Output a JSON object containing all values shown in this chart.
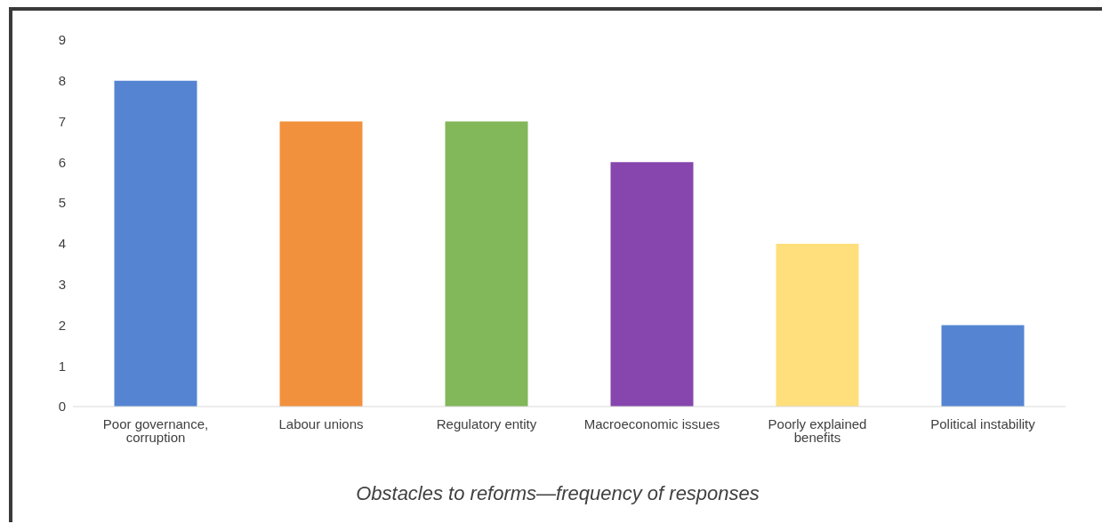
{
  "chart_data": {
    "type": "bar",
    "title": "Obstacles to reforms—frequency of responses",
    "categories": [
      "Poor governance, corruption",
      "Labour unions",
      "Regulatory entity",
      "Macroeconomic issues",
      "Poorly explained benefits",
      "Political instability"
    ],
    "values": [
      8,
      7,
      7,
      6,
      4,
      2
    ],
    "colors": [
      "#5585d2",
      "#f2913d",
      "#82b75a",
      "#8646ad",
      "#ffdf7c",
      "#5585d2"
    ],
    "ylim": [
      0,
      9
    ],
    "yticks": [
      0,
      1,
      2,
      3,
      4,
      5,
      6,
      7,
      8,
      9
    ]
  }
}
